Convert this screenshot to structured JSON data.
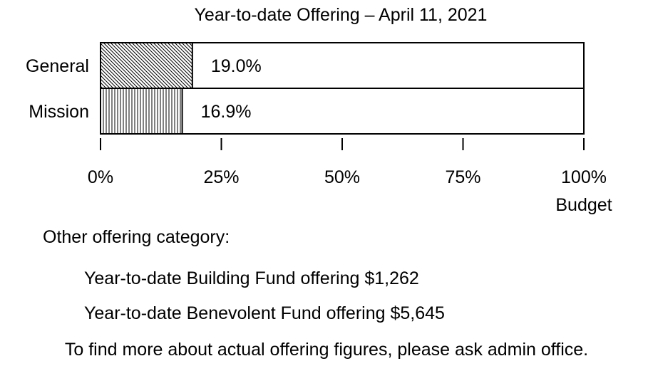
{
  "chart_data": {
    "type": "bar",
    "orientation": "horizontal",
    "title": "Year-to-date Offering – April 11, 2021",
    "categories": [
      "General",
      "Mission"
    ],
    "values": [
      19.0,
      16.9
    ],
    "value_labels": [
      "19.0%",
      "16.9%"
    ],
    "xlim": [
      0,
      100
    ],
    "xticks": [
      "0%",
      "25%",
      "50%",
      "75%",
      "100%"
    ],
    "xtick_values": [
      0,
      25,
      50,
      75,
      100
    ],
    "xlabel": "Budget",
    "grid": false,
    "fill_patterns": [
      "diagonal-hatch",
      "vertical-hatch"
    ]
  },
  "notes": {
    "heading": "Other offering category:",
    "building_fund": "Year-to-date Building Fund offering $1,262",
    "benevolent_fund": "Year-to-date Benevolent Fund offering $5,645",
    "footer": "To find more about actual offering figures, please ask admin office."
  }
}
